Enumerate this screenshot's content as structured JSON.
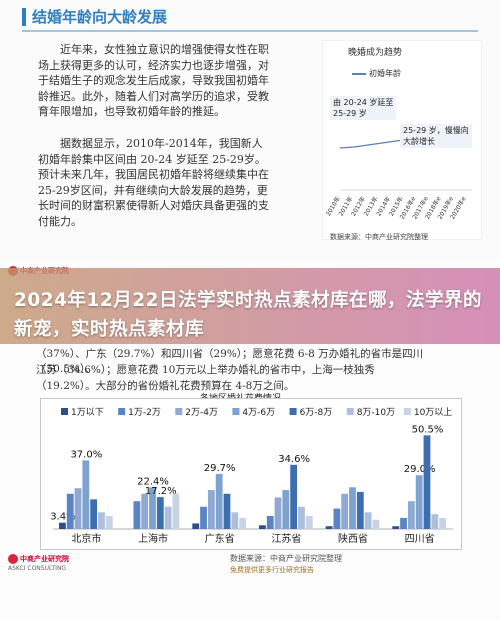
{
  "top_page": {
    "title": "结婚年龄向大龄发展",
    "paragraphs": [
      "近年来，女性独立意识的增强使得女性在职场上获得更多的认可，经济实力也逐步增强，对于结婚生子的观念发生后成家，导致我国初婚年龄推迟。此外，随着人们对高学历的追求，受教育年限增加，也导致初婚年龄的推延。",
      "据数据显示，2010年-2014年，我国新人初婚年龄集中区间由 20-24 岁延至 25-29岁。预计未来几年，我国居民初婚年龄将继续集中在 25-29岁区间，并有继续向大龄发展的趋势，更长时间的财富积累使得新人对婚庆具备更强的支付能力。"
    ],
    "mini_chart": {
      "title": "晚婚成为趋势",
      "legend": "初婚年龄",
      "note1_line1": "由 20-24 岁延至",
      "note1_line2": "25-29 岁",
      "note2_line1": "25-29 岁，慢慢向",
      "note2_line2": "大龄增长",
      "x_labels": [
        "2010年",
        "2011年",
        "2012年",
        "2013年",
        "2014年",
        "2015年",
        "2016年e",
        "2017年e",
        "2018年e",
        "2019年e",
        "2020年e"
      ],
      "source": "数据来源：中商产业研究院整理"
    }
  },
  "banner": {
    "text": "2024年12月22日法学实时热点素材库在哪，法学界的新宠，实时热点素材库"
  },
  "bottom_page": {
    "partial_line": "（37%）、广东（29.7%）和四川省（29%）；愿意花费 6-8 万办婚礼的省市是四川（50.5%）、",
    "line2": "江苏（34.6%）；愿意花费 10万元以上举办婚礼的省市中，上海一枝独秀",
    "line3": "（19.2%）。大部分的省份婚礼花费预算在 4-8万之间。",
    "logo_text": "中商产业研究院",
    "logo_sub": "ASKCI CONSULTING",
    "watermark": "中商产业研究院",
    "footer_red": "免费提供",
    "footer_src": "数据来源：中商产业研究院整理",
    "footer_more": "免费提供更多行业研究报告"
  },
  "chart_data": {
    "type": "bar",
    "title": "各地区婚礼花费情况",
    "categories": [
      "北京市",
      "上海市",
      "广东省",
      "江苏省",
      "陕西省",
      "四川省"
    ],
    "series": [
      {
        "name": "1万以下",
        "values": [
          3.4,
          0,
          3.0,
          2.0,
          1.5,
          1.5
        ]
      },
      {
        "name": "1万-2万",
        "values": [
          19.0,
          15.0,
          12.0,
          7.0,
          11.0,
          6.0
        ]
      },
      {
        "name": "2万-4万",
        "values": [
          22.0,
          19.0,
          21.0,
          17.0,
          19.0,
          15.0
        ]
      },
      {
        "name": "4万-6万",
        "values": [
          37.0,
          22.4,
          29.7,
          21.0,
          22.5,
          29.0
        ]
      },
      {
        "name": "6万-8万",
        "values": [
          16.0,
          17.2,
          19.0,
          34.6,
          20.0,
          50.5
        ]
      },
      {
        "name": "8万-10万",
        "values": [
          9.0,
          12.0,
          9.0,
          12.0,
          9.0,
          8.0
        ]
      },
      {
        "name": "10万以上",
        "values": [
          7.0,
          19.2,
          6.0,
          7.0,
          5.0,
          6.0
        ]
      }
    ],
    "labels_shown": [
      "37.0%",
      "22.4%",
      "3.4%",
      "17.2%",
      "29.7%",
      "34.6%",
      "50.5%",
      "29.0%"
    ],
    "ylim": [
      0,
      55
    ],
    "colors": [
      "#2e4f8a",
      "#5b84c4",
      "#8fa9d4",
      "#7da2cf",
      "#3d6fb0",
      "#aebfdd",
      "#c9d3e6"
    ],
    "legend_position": "top"
  }
}
